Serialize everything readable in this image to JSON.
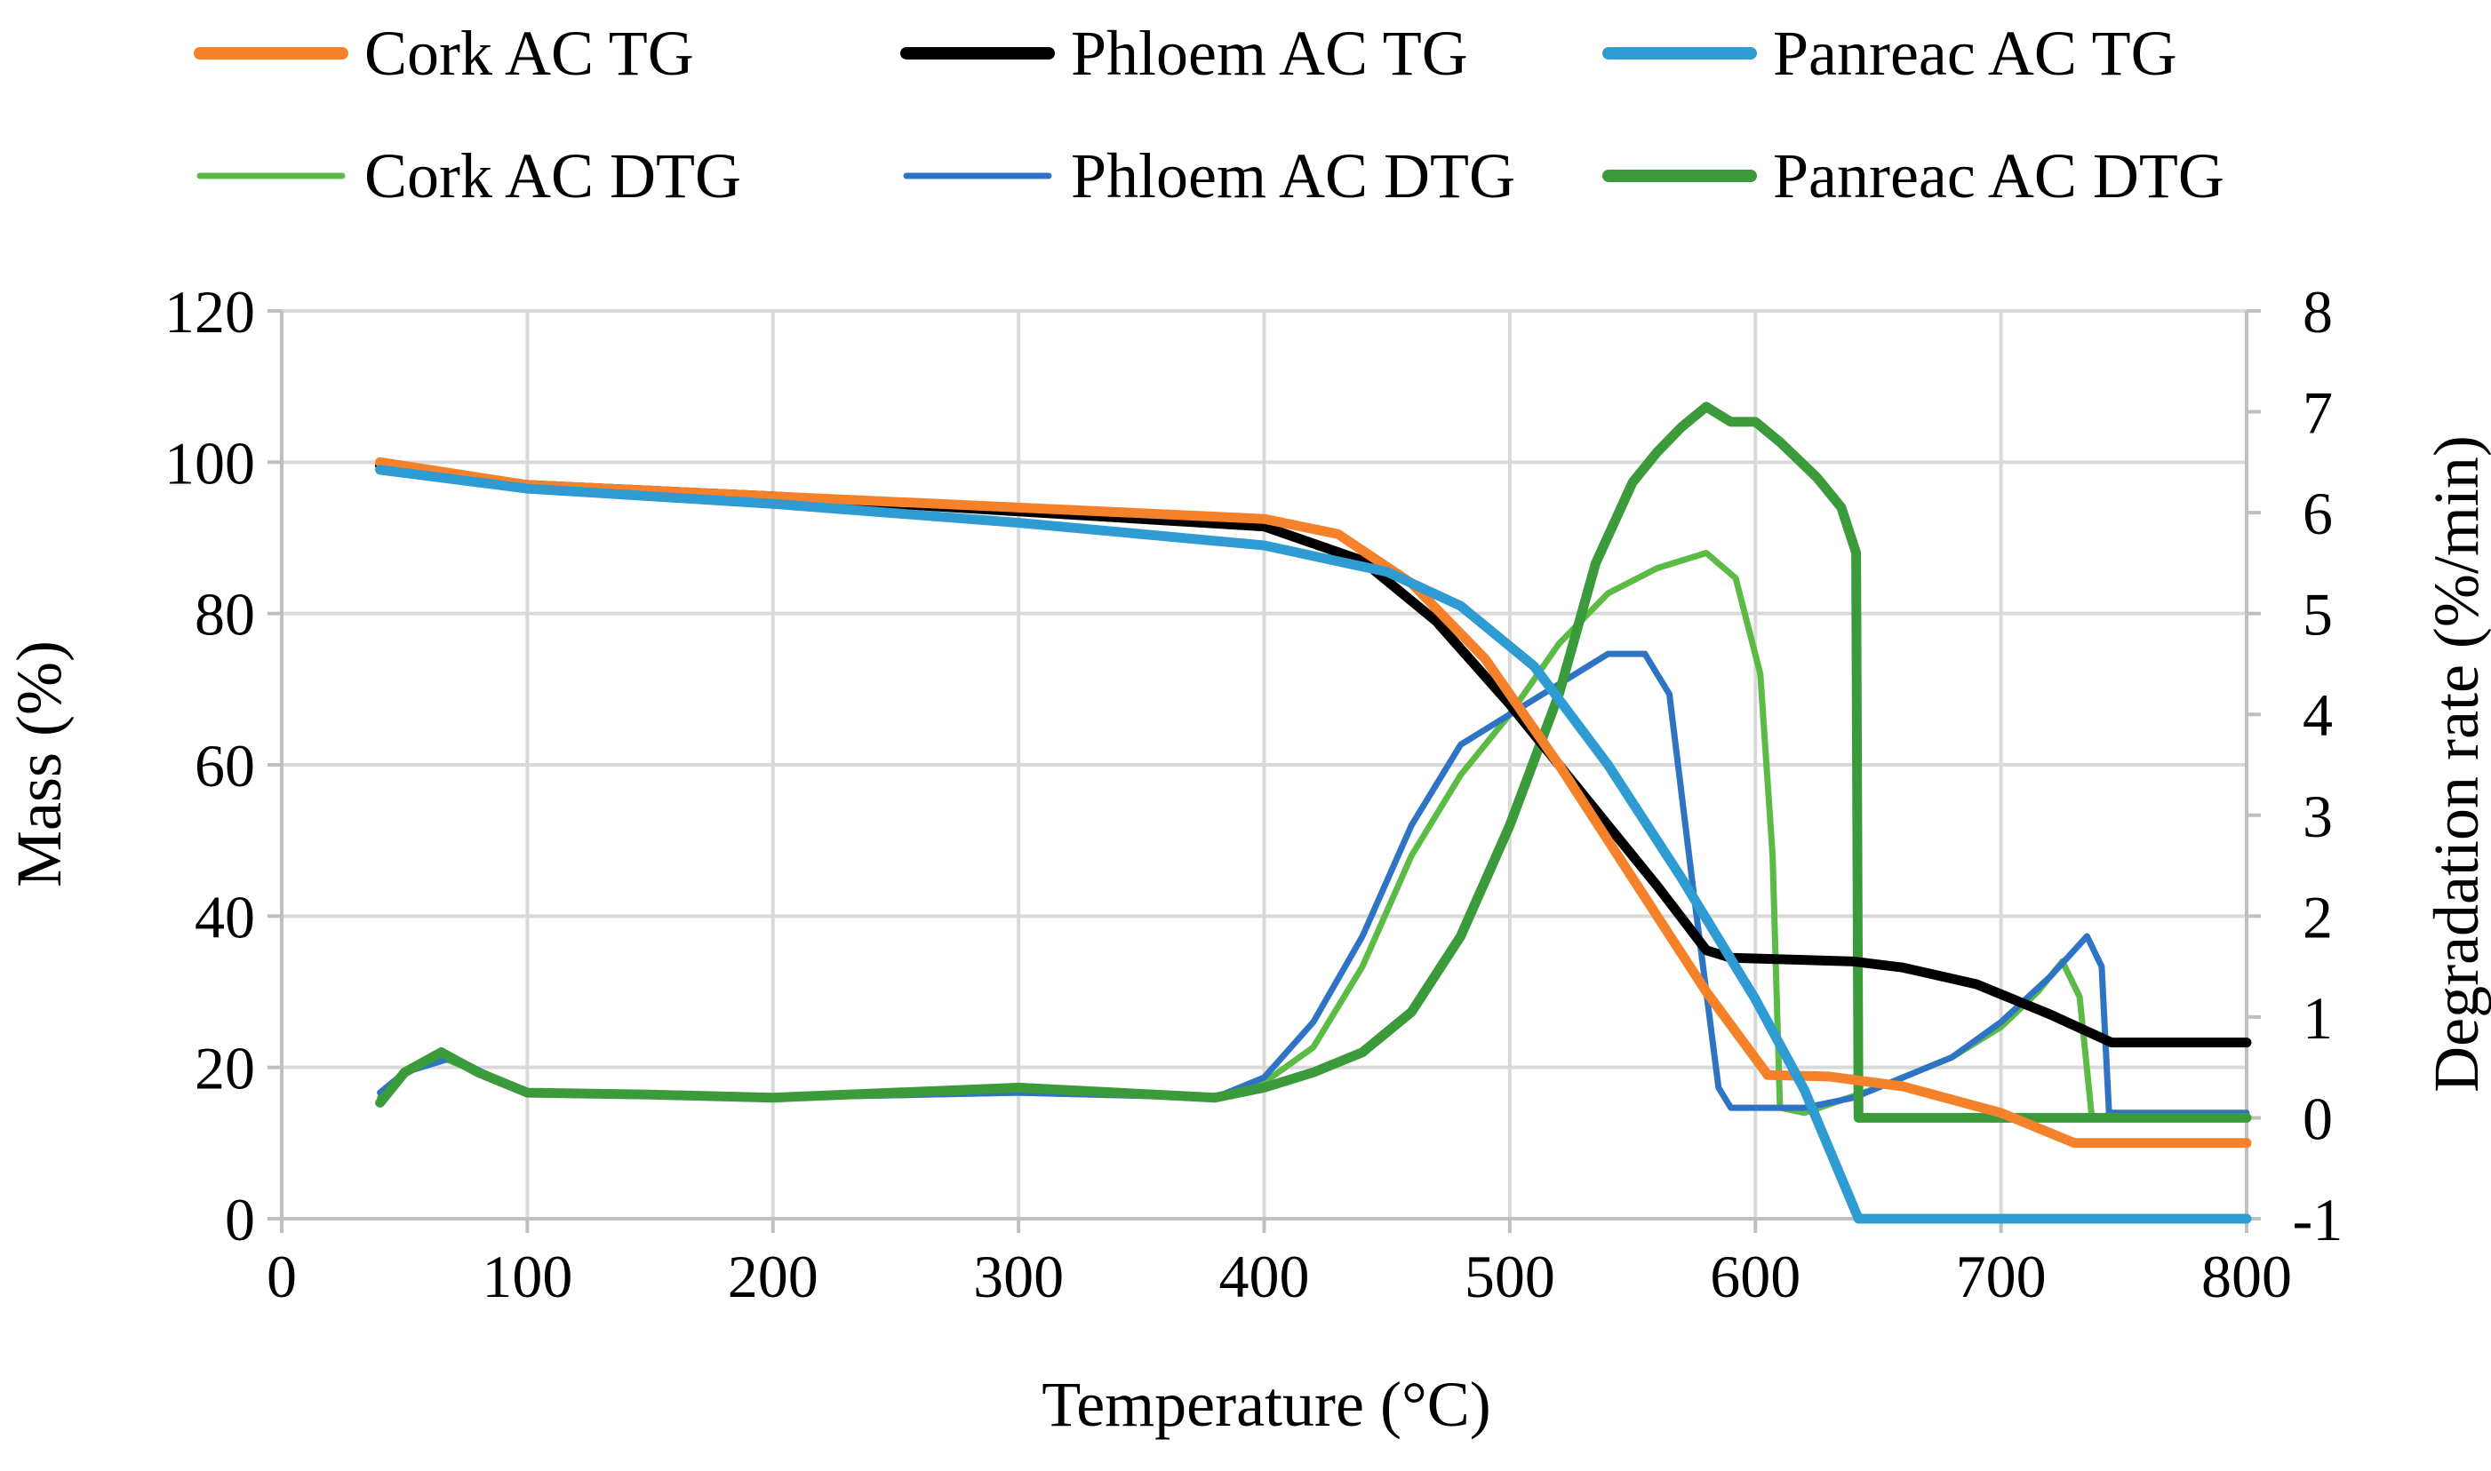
{
  "chart_data": {
    "type": "line",
    "xlabel": "Temperature (°C)",
    "ylabel": "Mass (%)",
    "y2label": "Degradation rate (%/min)",
    "xlim": [
      0,
      800
    ],
    "ylim": [
      0,
      120
    ],
    "y2lim": [
      -1,
      8
    ],
    "x_ticks": [
      0,
      100,
      200,
      300,
      400,
      500,
      600,
      700,
      800
    ],
    "y_ticks": [
      0,
      20,
      40,
      60,
      80,
      100,
      120
    ],
    "y2_ticks": [
      -1,
      0,
      1,
      2,
      3,
      4,
      5,
      6,
      7,
      8
    ],
    "grid": "vertical and horizontal gridlines",
    "legend_position": "top",
    "series": [
      {
        "name": "Cork AC TG",
        "axis": "left",
        "color": "#f5822a",
        "weight": "thick",
        "points": [
          [
            40,
            100
          ],
          [
            100,
            97
          ],
          [
            200,
            95.5
          ],
          [
            300,
            94
          ],
          [
            400,
            92.5
          ],
          [
            430,
            90.5
          ],
          [
            460,
            84
          ],
          [
            490,
            74
          ],
          [
            520,
            60
          ],
          [
            550,
            45
          ],
          [
            580,
            30
          ],
          [
            605,
            19
          ],
          [
            630,
            18.8
          ],
          [
            660,
            17.5
          ],
          [
            700,
            14
          ],
          [
            730,
            10
          ],
          [
            800,
            10
          ]
        ]
      },
      {
        "name": "Phloem AC TG",
        "axis": "left",
        "color": "#000000",
        "weight": "thick",
        "points": [
          [
            40,
            99.5
          ],
          [
            100,
            97
          ],
          [
            200,
            95.5
          ],
          [
            300,
            93.5
          ],
          [
            400,
            91.5
          ],
          [
            440,
            87
          ],
          [
            470,
            79
          ],
          [
            500,
            68
          ],
          [
            530,
            56
          ],
          [
            560,
            44
          ],
          [
            580,
            35.5
          ],
          [
            590,
            34.5
          ],
          [
            640,
            34
          ],
          [
            660,
            33.2
          ],
          [
            690,
            31
          ],
          [
            720,
            27
          ],
          [
            745,
            23.3
          ],
          [
            800,
            23.3
          ]
        ]
      },
      {
        "name": "Panreac AC TG",
        "axis": "left",
        "color": "#2e9bd3",
        "weight": "thick",
        "points": [
          [
            40,
            99
          ],
          [
            100,
            96.5
          ],
          [
            200,
            94.5
          ],
          [
            300,
            92
          ],
          [
            400,
            89
          ],
          [
            450,
            85.5
          ],
          [
            480,
            81
          ],
          [
            510,
            73
          ],
          [
            540,
            60
          ],
          [
            570,
            45
          ],
          [
            600,
            29
          ],
          [
            620,
            17
          ],
          [
            642,
            0
          ],
          [
            800,
            0
          ]
        ]
      },
      {
        "name": "Cork AC DTG",
        "axis": "right",
        "color": "#5bbb45",
        "weight": "thin",
        "points": [
          [
            40,
            0.2
          ],
          [
            50,
            0.45
          ],
          [
            65,
            0.6
          ],
          [
            80,
            0.45
          ],
          [
            100,
            0.25
          ],
          [
            150,
            0.22
          ],
          [
            200,
            0.2
          ],
          [
            300,
            0.25
          ],
          [
            380,
            0.2
          ],
          [
            400,
            0.35
          ],
          [
            420,
            0.7
          ],
          [
            440,
            1.5
          ],
          [
            460,
            2.6
          ],
          [
            480,
            3.4
          ],
          [
            500,
            4.0
          ],
          [
            520,
            4.7
          ],
          [
            540,
            5.2
          ],
          [
            560,
            5.45
          ],
          [
            580,
            5.6
          ],
          [
            592,
            5.35
          ],
          [
            602,
            4.4
          ],
          [
            607,
            2.6
          ],
          [
            610,
            0.1
          ],
          [
            620,
            0.05
          ],
          [
            650,
            0.3
          ],
          [
            680,
            0.6
          ],
          [
            700,
            0.9
          ],
          [
            715,
            1.25
          ],
          [
            725,
            1.55
          ],
          [
            732,
            1.2
          ],
          [
            737,
            0
          ],
          [
            800,
            0
          ]
        ]
      },
      {
        "name": "Phloem AC DTG",
        "axis": "right",
        "color": "#2f73c4",
        "weight": "thin",
        "points": [
          [
            40,
            0.25
          ],
          [
            50,
            0.45
          ],
          [
            70,
            0.6
          ],
          [
            90,
            0.35
          ],
          [
            100,
            0.25
          ],
          [
            150,
            0.23
          ],
          [
            200,
            0.2
          ],
          [
            300,
            0.25
          ],
          [
            380,
            0.2
          ],
          [
            400,
            0.4
          ],
          [
            420,
            0.95
          ],
          [
            440,
            1.8
          ],
          [
            460,
            2.9
          ],
          [
            480,
            3.7
          ],
          [
            500,
            4.0
          ],
          [
            520,
            4.3
          ],
          [
            540,
            4.6
          ],
          [
            555,
            4.6
          ],
          [
            565,
            4.2
          ],
          [
            575,
            2.2
          ],
          [
            585,
            0.3
          ],
          [
            590,
            0.1
          ],
          [
            620,
            0.1
          ],
          [
            640,
            0.2
          ],
          [
            660,
            0.4
          ],
          [
            680,
            0.6
          ],
          [
            700,
            0.95
          ],
          [
            720,
            1.4
          ],
          [
            735,
            1.8
          ],
          [
            741,
            1.5
          ],
          [
            744,
            0.05
          ],
          [
            800,
            0.05
          ]
        ]
      },
      {
        "name": "Panreac AC DTG",
        "axis": "right",
        "color": "#3b9b3a",
        "weight": "thick",
        "points": [
          [
            40,
            0.15
          ],
          [
            50,
            0.45
          ],
          [
            65,
            0.65
          ],
          [
            80,
            0.45
          ],
          [
            100,
            0.25
          ],
          [
            150,
            0.23
          ],
          [
            200,
            0.2
          ],
          [
            300,
            0.3
          ],
          [
            380,
            0.2
          ],
          [
            400,
            0.3
          ],
          [
            420,
            0.45
          ],
          [
            440,
            0.65
          ],
          [
            460,
            1.05
          ],
          [
            480,
            1.8
          ],
          [
            500,
            2.9
          ],
          [
            520,
            4.2
          ],
          [
            535,
            5.5
          ],
          [
            550,
            6.3
          ],
          [
            560,
            6.6
          ],
          [
            570,
            6.85
          ],
          [
            580,
            7.05
          ],
          [
            590,
            6.9
          ],
          [
            600,
            6.9
          ],
          [
            610,
            6.7
          ],
          [
            625,
            6.35
          ],
          [
            635,
            6.05
          ],
          [
            641,
            5.6
          ],
          [
            642,
            0
          ],
          [
            800,
            0
          ]
        ]
      }
    ]
  }
}
